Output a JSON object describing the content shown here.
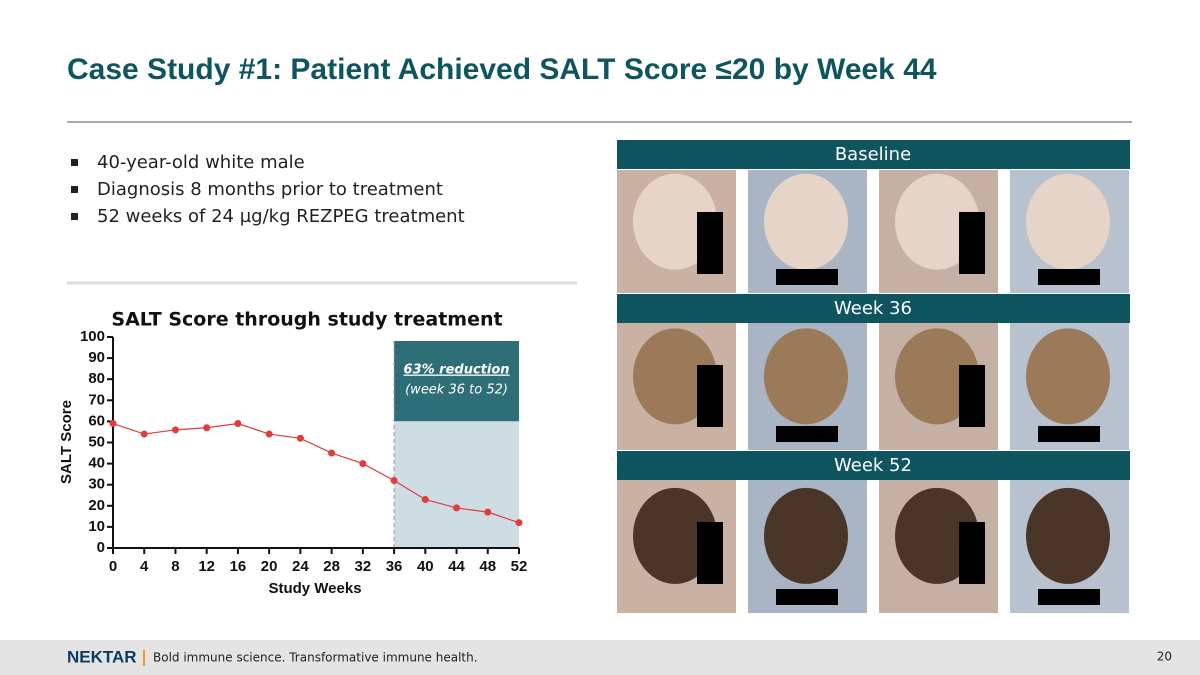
{
  "title": "Case Study #1: Patient Achieved SALT Score ≤20 by Week 44",
  "bullets": [
    "40-year-old white male",
    "Diagnosis 8 months prior to treatment",
    "52 weeks of 24 µg/kg REZPEG treatment"
  ],
  "photo_rows": [
    "Baseline",
    "Week 36",
    "Week 52"
  ],
  "footer": {
    "logo": "NEKTAR",
    "tagline": "Bold immune science. Transformative immune health.",
    "page_number": "20"
  },
  "chart_data": {
    "type": "line",
    "title": "SALT Score through study treatment",
    "x_label": "Study Weeks",
    "y_label": "SALT Score",
    "x": [
      0,
      4,
      8,
      12,
      16,
      20,
      24,
      28,
      32,
      36,
      40,
      44,
      48,
      52
    ],
    "values": [
      59,
      54,
      56,
      57,
      59,
      54,
      52,
      45,
      40,
      32,
      23,
      19,
      17,
      12
    ],
    "color": "#e03c3c",
    "xlim": [
      0,
      52
    ],
    "xticks": [
      0,
      4,
      8,
      12,
      16,
      20,
      24,
      28,
      32,
      36,
      40,
      44,
      48,
      52
    ],
    "ylim": [
      0,
      100
    ],
    "yticks": [
      0,
      10,
      20,
      30,
      40,
      50,
      60,
      70,
      80,
      90,
      100
    ],
    "highlight_x": [
      36,
      52
    ],
    "annotation": {
      "title": "63% reduction",
      "subtitle": "(week 36 to 52)"
    }
  }
}
